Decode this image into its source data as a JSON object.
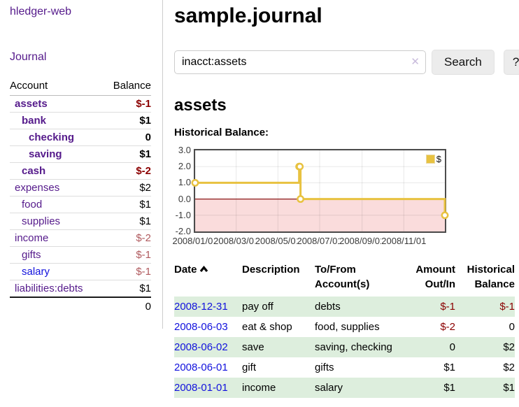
{
  "app": {
    "brand": "hledger-web",
    "nav_journal": "Journal"
  },
  "sidebar": {
    "columns": {
      "account": "Account",
      "balance": "Balance"
    },
    "accounts": [
      {
        "name": "assets",
        "level": 1,
        "bold": true,
        "balance": "$-1",
        "negative": true
      },
      {
        "name": "bank",
        "level": 2,
        "bold": true,
        "balance": "$1",
        "negative": false
      },
      {
        "name": "checking",
        "level": 3,
        "bold": true,
        "balance": "0",
        "negative": false
      },
      {
        "name": "saving",
        "level": 3,
        "bold": true,
        "balance": "$1",
        "negative": false
      },
      {
        "name": "cash",
        "level": 2,
        "bold": true,
        "balance": "$-2",
        "negative": true
      },
      {
        "name": "expenses",
        "level": 1,
        "bold": false,
        "balance": "$2",
        "negative": false
      },
      {
        "name": "food",
        "level": 2,
        "bold": false,
        "balance": "$1",
        "negative": false
      },
      {
        "name": "supplies",
        "level": 2,
        "bold": false,
        "balance": "$1",
        "negative": false
      },
      {
        "name": "income",
        "level": 1,
        "bold": false,
        "balance": "$-2",
        "negative": true
      },
      {
        "name": "gifts",
        "level": 2,
        "bold": false,
        "balance": "$-1",
        "negative": true
      },
      {
        "name": "salary",
        "level": 2,
        "bold": false,
        "balance": "$-1",
        "negative": true,
        "unvisited": true
      },
      {
        "name": "liabilities:debts",
        "level": 1,
        "bold": false,
        "balance": "$1",
        "negative": false
      }
    ],
    "total": "0"
  },
  "header": {
    "title": "sample.journal"
  },
  "search": {
    "value": "inacct:assets",
    "clear_icon": "✕",
    "button_label": "Search",
    "help_label": "?"
  },
  "account_page": {
    "title": "assets",
    "chart_label": "Historical Balance:"
  },
  "chart_data": {
    "type": "line",
    "title": "Historical Balance",
    "steps": true,
    "ylim": [
      -2,
      3
    ],
    "y_ticks": [
      "3.0",
      "2.0",
      "1.0",
      "0.0",
      "-1.0",
      "-2.0"
    ],
    "x_ticks": [
      "2008/01/01",
      "2008/03/01",
      "2008/05/01",
      "2008/07/01",
      "2008/09/01",
      "2008/11/01"
    ],
    "series": [
      {
        "name": "$",
        "color": "#e8c240",
        "points": [
          [
            "2008-01-01",
            1
          ],
          [
            "2008-06-01",
            2
          ],
          [
            "2008-06-02",
            2
          ],
          [
            "2008-06-03",
            0
          ],
          [
            "2008-12-31",
            -1
          ]
        ]
      }
    ],
    "legend": "$",
    "legend_position": "top-right",
    "grid": true,
    "negative_region_color": "#fadcdc",
    "zero_line_color": "#8b1a1a",
    "border_color": "#4d4d4d"
  },
  "register": {
    "columns": [
      "Date",
      "Description",
      "To/From Account(s)",
      "Amount Out/In",
      "Historical Balance"
    ],
    "sort": "ascending",
    "rows": [
      {
        "date": "2008-12-31",
        "description": "pay off",
        "accounts": "debts",
        "amount": "$-1",
        "amount_negative": true,
        "balance": "$-1",
        "balance_negative": true,
        "shaded": true
      },
      {
        "date": "2008-06-03",
        "description": "eat & shop",
        "accounts": "food, supplies",
        "amount": "$-2",
        "amount_negative": true,
        "balance": "0",
        "balance_negative": false,
        "shaded": false
      },
      {
        "date": "2008-06-02",
        "description": "save",
        "accounts": "saving, checking",
        "amount": "0",
        "amount_negative": false,
        "balance": "$2",
        "balance_negative": false,
        "shaded": true
      },
      {
        "date": "2008-06-01",
        "description": "gift",
        "accounts": "gifts",
        "amount": "$1",
        "amount_negative": false,
        "balance": "$2",
        "balance_negative": false,
        "shaded": false
      },
      {
        "date": "2008-01-01",
        "description": "income",
        "accounts": "salary",
        "amount": "$1",
        "amount_negative": false,
        "balance": "$1",
        "balance_negative": false,
        "shaded": true
      }
    ]
  }
}
